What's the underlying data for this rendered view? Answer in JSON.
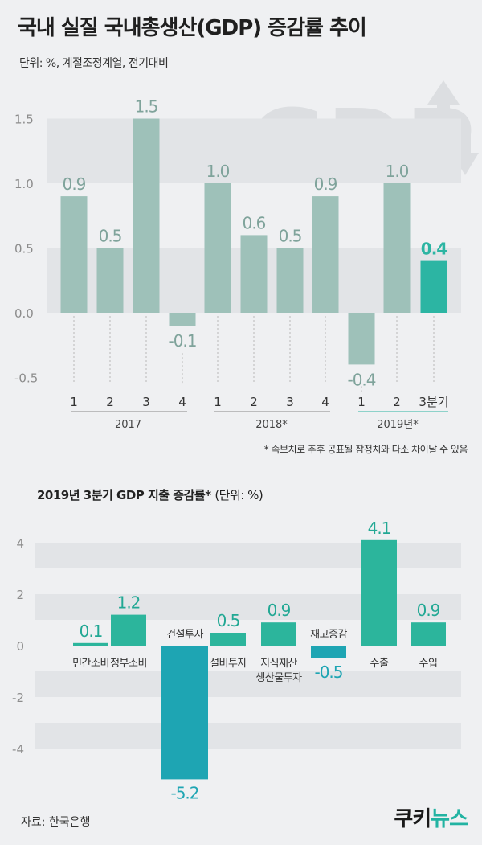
{
  "header": {
    "title": "국내 실질 국내총생산(GDP) 증감률 추이",
    "unit": "단위: %, 계절조정계열, 전기대비",
    "watermark": "GDP"
  },
  "chart_data": [
    {
      "type": "bar",
      "title": "국내 실질 국내총생산(GDP) 증감률 추이",
      "ylim": [
        -0.5,
        1.5
      ],
      "yticks": [
        "1.5",
        "1.0",
        "0.5",
        "0.0",
        "-0.5"
      ],
      "categories": [
        "1",
        "2",
        "3",
        "4",
        "1",
        "2",
        "3",
        "4",
        "1",
        "2",
        "3분기"
      ],
      "values": [
        0.9,
        0.5,
        1.5,
        -0.1,
        1.0,
        0.6,
        0.5,
        0.9,
        -0.4,
        1.0,
        0.4
      ],
      "labels": [
        "0.9",
        "0.5",
        "1.5",
        "-0.1",
        "1.0",
        "0.6",
        "0.5",
        "0.9",
        "-0.4",
        "1.0",
        "0.4"
      ],
      "groups": [
        {
          "label": "2017",
          "start": 0,
          "end": 3
        },
        {
          "label": "2018*",
          "start": 4,
          "end": 7
        },
        {
          "label": "2019년*",
          "start": 8,
          "end": 10
        }
      ],
      "highlight_index": 10,
      "colors": {
        "bar": "#9ec1b9",
        "highlight": "#2cb5a3",
        "label": "#7fa39b",
        "band": "#e2e4e7"
      }
    },
    {
      "type": "bar",
      "title": "2019년 3분기 GDP 지출 증감률*",
      "ylim": [
        -5.2,
        4.1
      ],
      "yticks": [
        "4",
        "2",
        "0",
        "-2",
        "-4"
      ],
      "categories": [
        "민간소비",
        "정부소비",
        "건설투자",
        "설비투자",
        "지식재산\n생산물투자",
        "재고증감",
        "수출",
        "수입"
      ],
      "values": [
        0.1,
        1.2,
        -5.2,
        0.5,
        0.9,
        -0.5,
        4.1,
        0.9
      ],
      "labels": [
        "0.1",
        "1.2",
        "-5.2",
        "0.5",
        "0.9",
        "-0.5",
        "4.1",
        "0.9"
      ],
      "colors": {
        "positive": "#2cb59c",
        "negative": "#1ea5b3",
        "label": "#22a894",
        "band": "#e2e4e7"
      }
    }
  ],
  "note": "* 속보치로 추후 공표될 잠정치와 다소 차이날 수 있음",
  "second": {
    "title": "2019년 3분기 GDP 지출 증감률*",
    "unit": "(단위: %)"
  },
  "footer": {
    "source": "자료: 한국은행",
    "logo_a": "쿠키",
    "logo_b": "뉴스"
  }
}
